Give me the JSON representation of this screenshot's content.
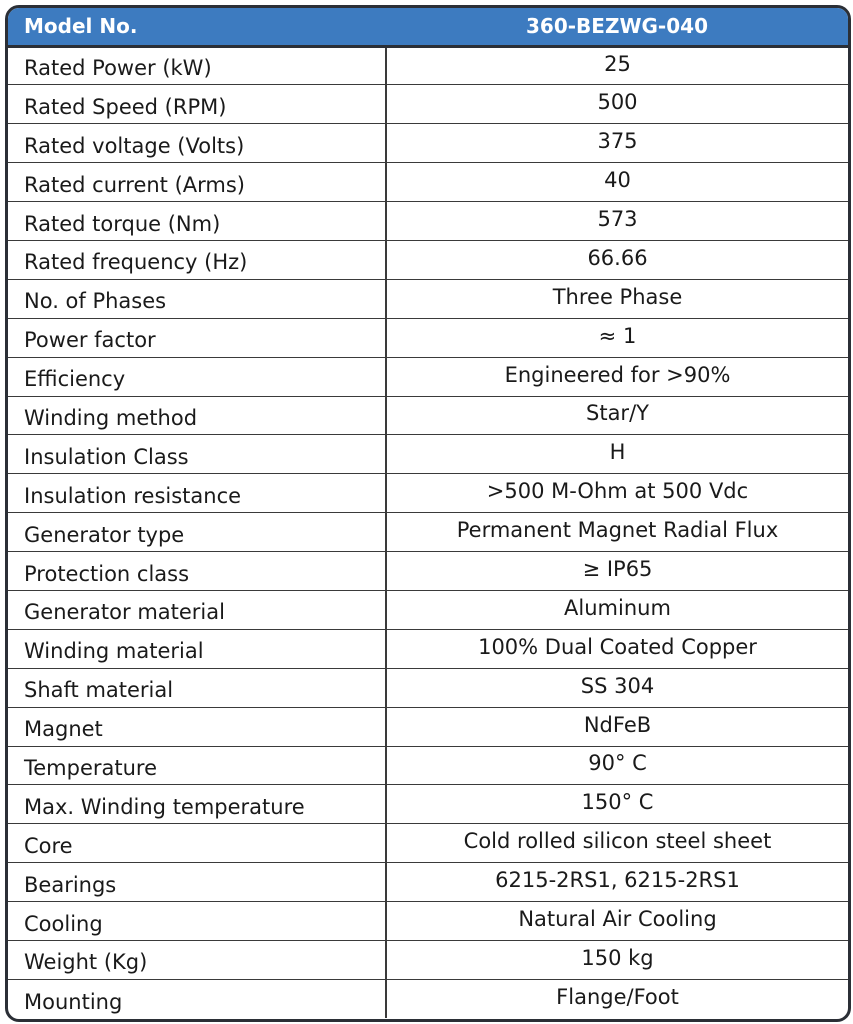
{
  "table": {
    "header": {
      "label": "Model No.",
      "value": "360-BEZWG-040"
    },
    "rows": [
      {
        "label": "Rated Power (kW)",
        "value": "25"
      },
      {
        "label": "Rated Speed (RPM)",
        "value": "500"
      },
      {
        "label": "Rated voltage (Volts)",
        "value": "375"
      },
      {
        "label": "Rated current (Arms)",
        "value": "40"
      },
      {
        "label": "Rated torque (Nm)",
        "value": "573"
      },
      {
        "label": "Rated frequency (Hz)",
        "value": "66.66"
      },
      {
        "label": "No. of Phases",
        "value": "Three Phase"
      },
      {
        "label": "Power factor",
        "value": "≈ 1"
      },
      {
        "label": "Efficiency",
        "value": "Engineered for >90%"
      },
      {
        "label": "Winding method",
        "value": "Star/Y"
      },
      {
        "label": "Insulation Class",
        "value": "H"
      },
      {
        "label": "Insulation resistance",
        "value": ">500 M-Ohm at 500 Vdc"
      },
      {
        "label": "Generator type",
        "value": "Permanent Magnet Radial Flux"
      },
      {
        "label": "Protection class",
        "value": "≥ IP65"
      },
      {
        "label": "Generator material",
        "value": "Aluminum"
      },
      {
        "label": "Winding material",
        "value": "100% Dual Coated Copper"
      },
      {
        "label": "Shaft material",
        "value": "SS 304"
      },
      {
        "label": "Magnet",
        "value": "NdFeB"
      },
      {
        "label": "Temperature",
        "value": "90° C"
      },
      {
        "label": "Max. Winding temperature",
        "value": "150° C"
      },
      {
        "label": "Core",
        "value": "Cold rolled silicon steel sheet"
      },
      {
        "label": "Bearings",
        "value": "6215-2RS1, 6215-2RS1"
      },
      {
        "label": "Cooling",
        "value": "Natural Air Cooling"
      },
      {
        "label": "Weight (Kg)",
        "value": "150 kg"
      },
      {
        "label": "Mounting",
        "value": "Flange/Foot"
      }
    ]
  },
  "colors": {
    "header_background": "#3d7bc0",
    "header_text": "#ffffff",
    "border": "#2b2f36"
  }
}
